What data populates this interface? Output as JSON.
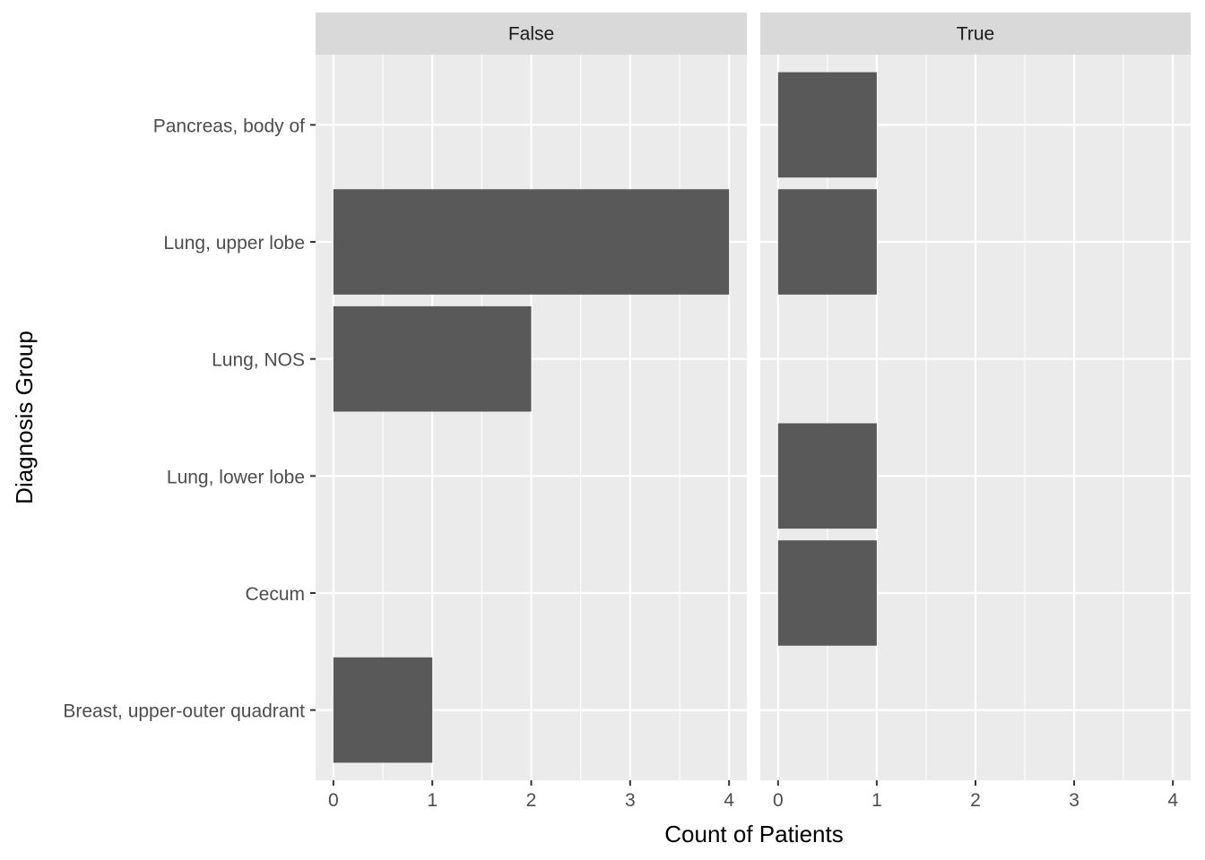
{
  "chart_data": {
    "type": "bar",
    "orientation": "horizontal",
    "facet_variable_values": [
      "False",
      "True"
    ],
    "categories": [
      "Breast, upper-outer quadrant",
      "Cecum",
      "Lung, lower lobe",
      "Lung, NOS",
      "Lung, upper lobe",
      "Pancreas, body of"
    ],
    "panels": [
      {
        "strip": "False",
        "values": [
          1,
          0,
          0,
          2,
          4,
          0
        ]
      },
      {
        "strip": "True",
        "values": [
          0,
          1,
          1,
          0,
          1,
          1
        ]
      }
    ],
    "xlabel": "Count of Patients",
    "ylabel": "Diagnosis Group",
    "xlim": [
      0,
      4
    ],
    "x_ticks": [
      "0",
      "1",
      "2",
      "3",
      "4"
    ],
    "grid": true,
    "legend": "none",
    "colors": {
      "bar": "#595959",
      "panel_background": "#ebebeb",
      "strip_background": "#d9d9d9",
      "grid": "#ffffff"
    }
  }
}
